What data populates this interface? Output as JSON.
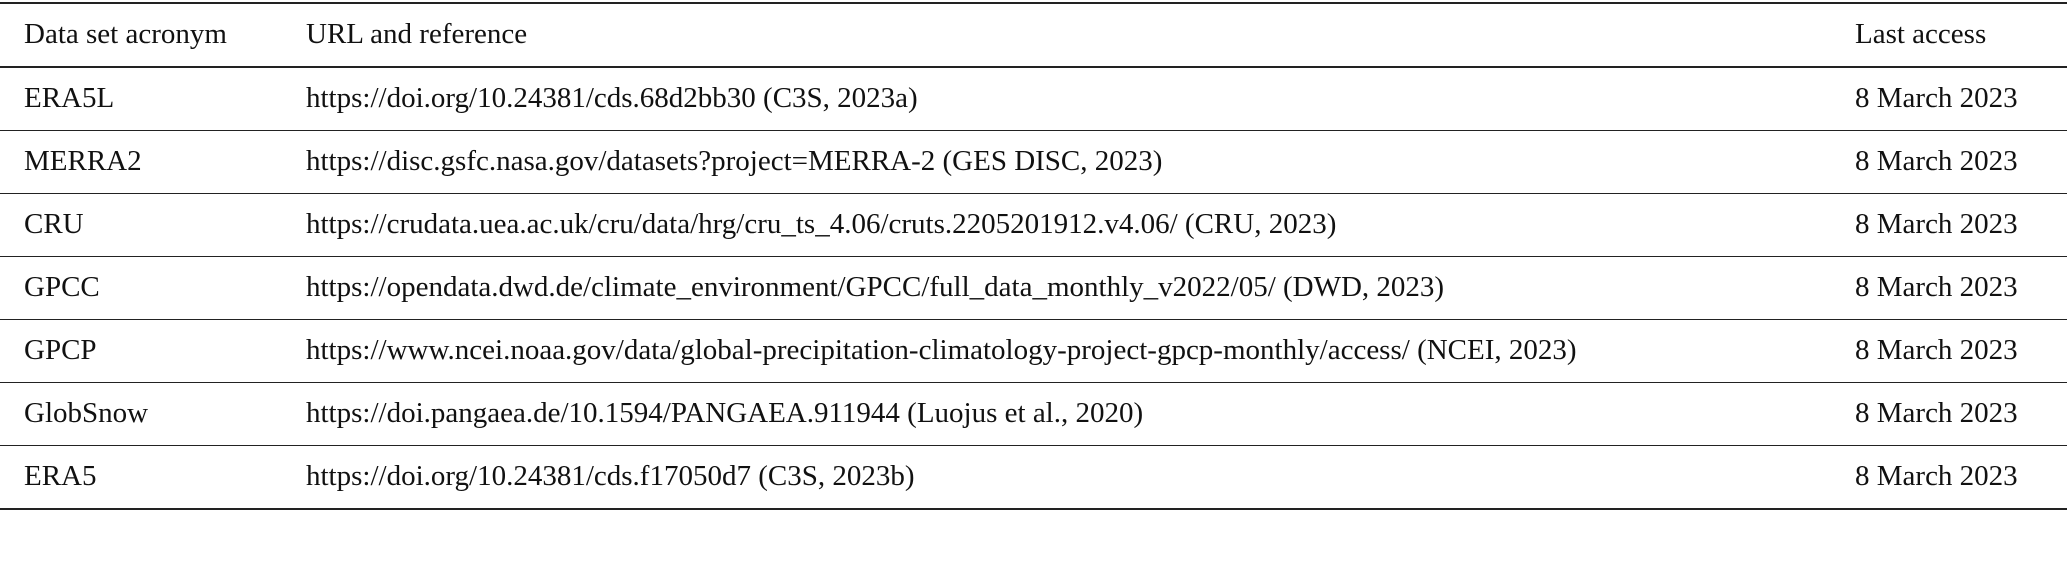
{
  "table": {
    "header": [
      "Data set acronym",
      "URL and reference",
      "Last access"
    ],
    "rows": [
      [
        "ERA5L",
        "https://doi.org/10.24381/cds.68d2bb30 (C3S, 2023a)",
        "8 March 2023"
      ],
      [
        "MERRA2",
        "https://disc.gsfc.nasa.gov/datasets?project=MERRA-2 (GES DISC, 2023)",
        "8 March 2023"
      ],
      [
        "CRU",
        "https://crudata.uea.ac.uk/cru/data/hrg/cru_ts_4.06/cruts.2205201912.v4.06/ (CRU, 2023)",
        "8 March 2023"
      ],
      [
        "GPCC",
        "https://opendata.dwd.de/climate_environment/GPCC/full_data_monthly_v2022/05/ (DWD, 2023)",
        "8 March 2023"
      ],
      [
        "GPCP",
        "https://www.ncei.noaa.gov/data/global-precipitation-climatology-project-gpcp-monthly/access/ (NCEI, 2023)",
        "8 March 2023"
      ],
      [
        "GlobSnow",
        "https://doi.pangaea.de/10.1594/PANGAEA.911944 (Luojus et al., 2020)",
        "8 March 2023"
      ],
      [
        "ERA5",
        "https://doi.org/10.24381/cds.f17050d7 (C3S, 2023b)",
        "8 March 2023"
      ]
    ]
  }
}
